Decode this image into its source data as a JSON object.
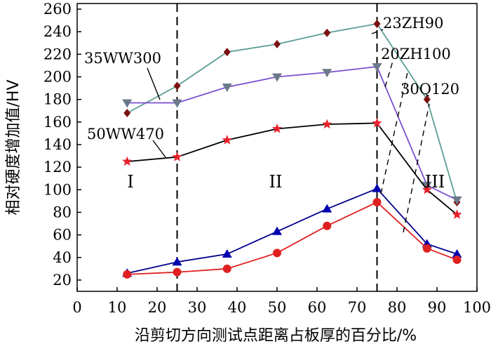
{
  "chart_data": {
    "type": "line",
    "xlabel": "沿剪切方向测试点距离占板厚的百分比/%",
    "ylabel": "相对硬度增加值/HV",
    "xlim": [
      0,
      100
    ],
    "ylim": [
      10,
      265
    ],
    "x_ticks": [
      "0",
      "10",
      "20",
      "30",
      "40",
      "50",
      "60",
      "70",
      "80",
      "90",
      "100"
    ],
    "y_ticks": [
      "20",
      "40",
      "60",
      "80",
      "100",
      "120",
      "140",
      "160",
      "180",
      "200",
      "220",
      "240",
      "260"
    ],
    "x_tick_values": [
      0,
      10,
      20,
      30,
      40,
      50,
      60,
      70,
      80,
      90,
      100
    ],
    "y_tick_values": [
      20,
      40,
      60,
      80,
      100,
      120,
      140,
      160,
      180,
      200,
      220,
      240,
      260
    ],
    "x": [
      12.5,
      25,
      37.5,
      50,
      62.5,
      75,
      87.5,
      95
    ],
    "series": [
      {
        "name": "23ZH90",
        "color": "#5c9e96",
        "marker": "diamond",
        "marker_color": "#7b1010",
        "values": [
          168,
          192,
          222,
          229,
          239,
          247,
          180,
          89
        ]
      },
      {
        "name": "20ZH100",
        "color": "#7b4fd0",
        "marker": "triangle-down",
        "marker_color": "#6b7a8a",
        "values": [
          177,
          177,
          191,
          200,
          204,
          209,
          104,
          91
        ]
      },
      {
        "name": "50WW470",
        "color": "#000000",
        "marker": "star",
        "marker_color": "#e8202a",
        "values": [
          125,
          129,
          144,
          154,
          158,
          159,
          100,
          78
        ]
      },
      {
        "name": "35WW300",
        "color": "#00008b",
        "marker": "triangle-up",
        "marker_color": "#0000b0",
        "values": [
          26,
          36,
          43,
          63,
          83,
          101,
          52,
          43
        ]
      },
      {
        "name": "30Q120",
        "color": "#e02020",
        "marker": "circle",
        "marker_color": "#e02020",
        "values": [
          25,
          27,
          30,
          44,
          68,
          89,
          48,
          38
        ]
      }
    ],
    "annotations": [
      "35WW300",
      "50WW470",
      "23ZH90",
      "20ZH100",
      "30Q120"
    ],
    "regions": [
      "I",
      "II",
      "III"
    ],
    "region_boundaries": [
      25,
      75
    ]
  }
}
